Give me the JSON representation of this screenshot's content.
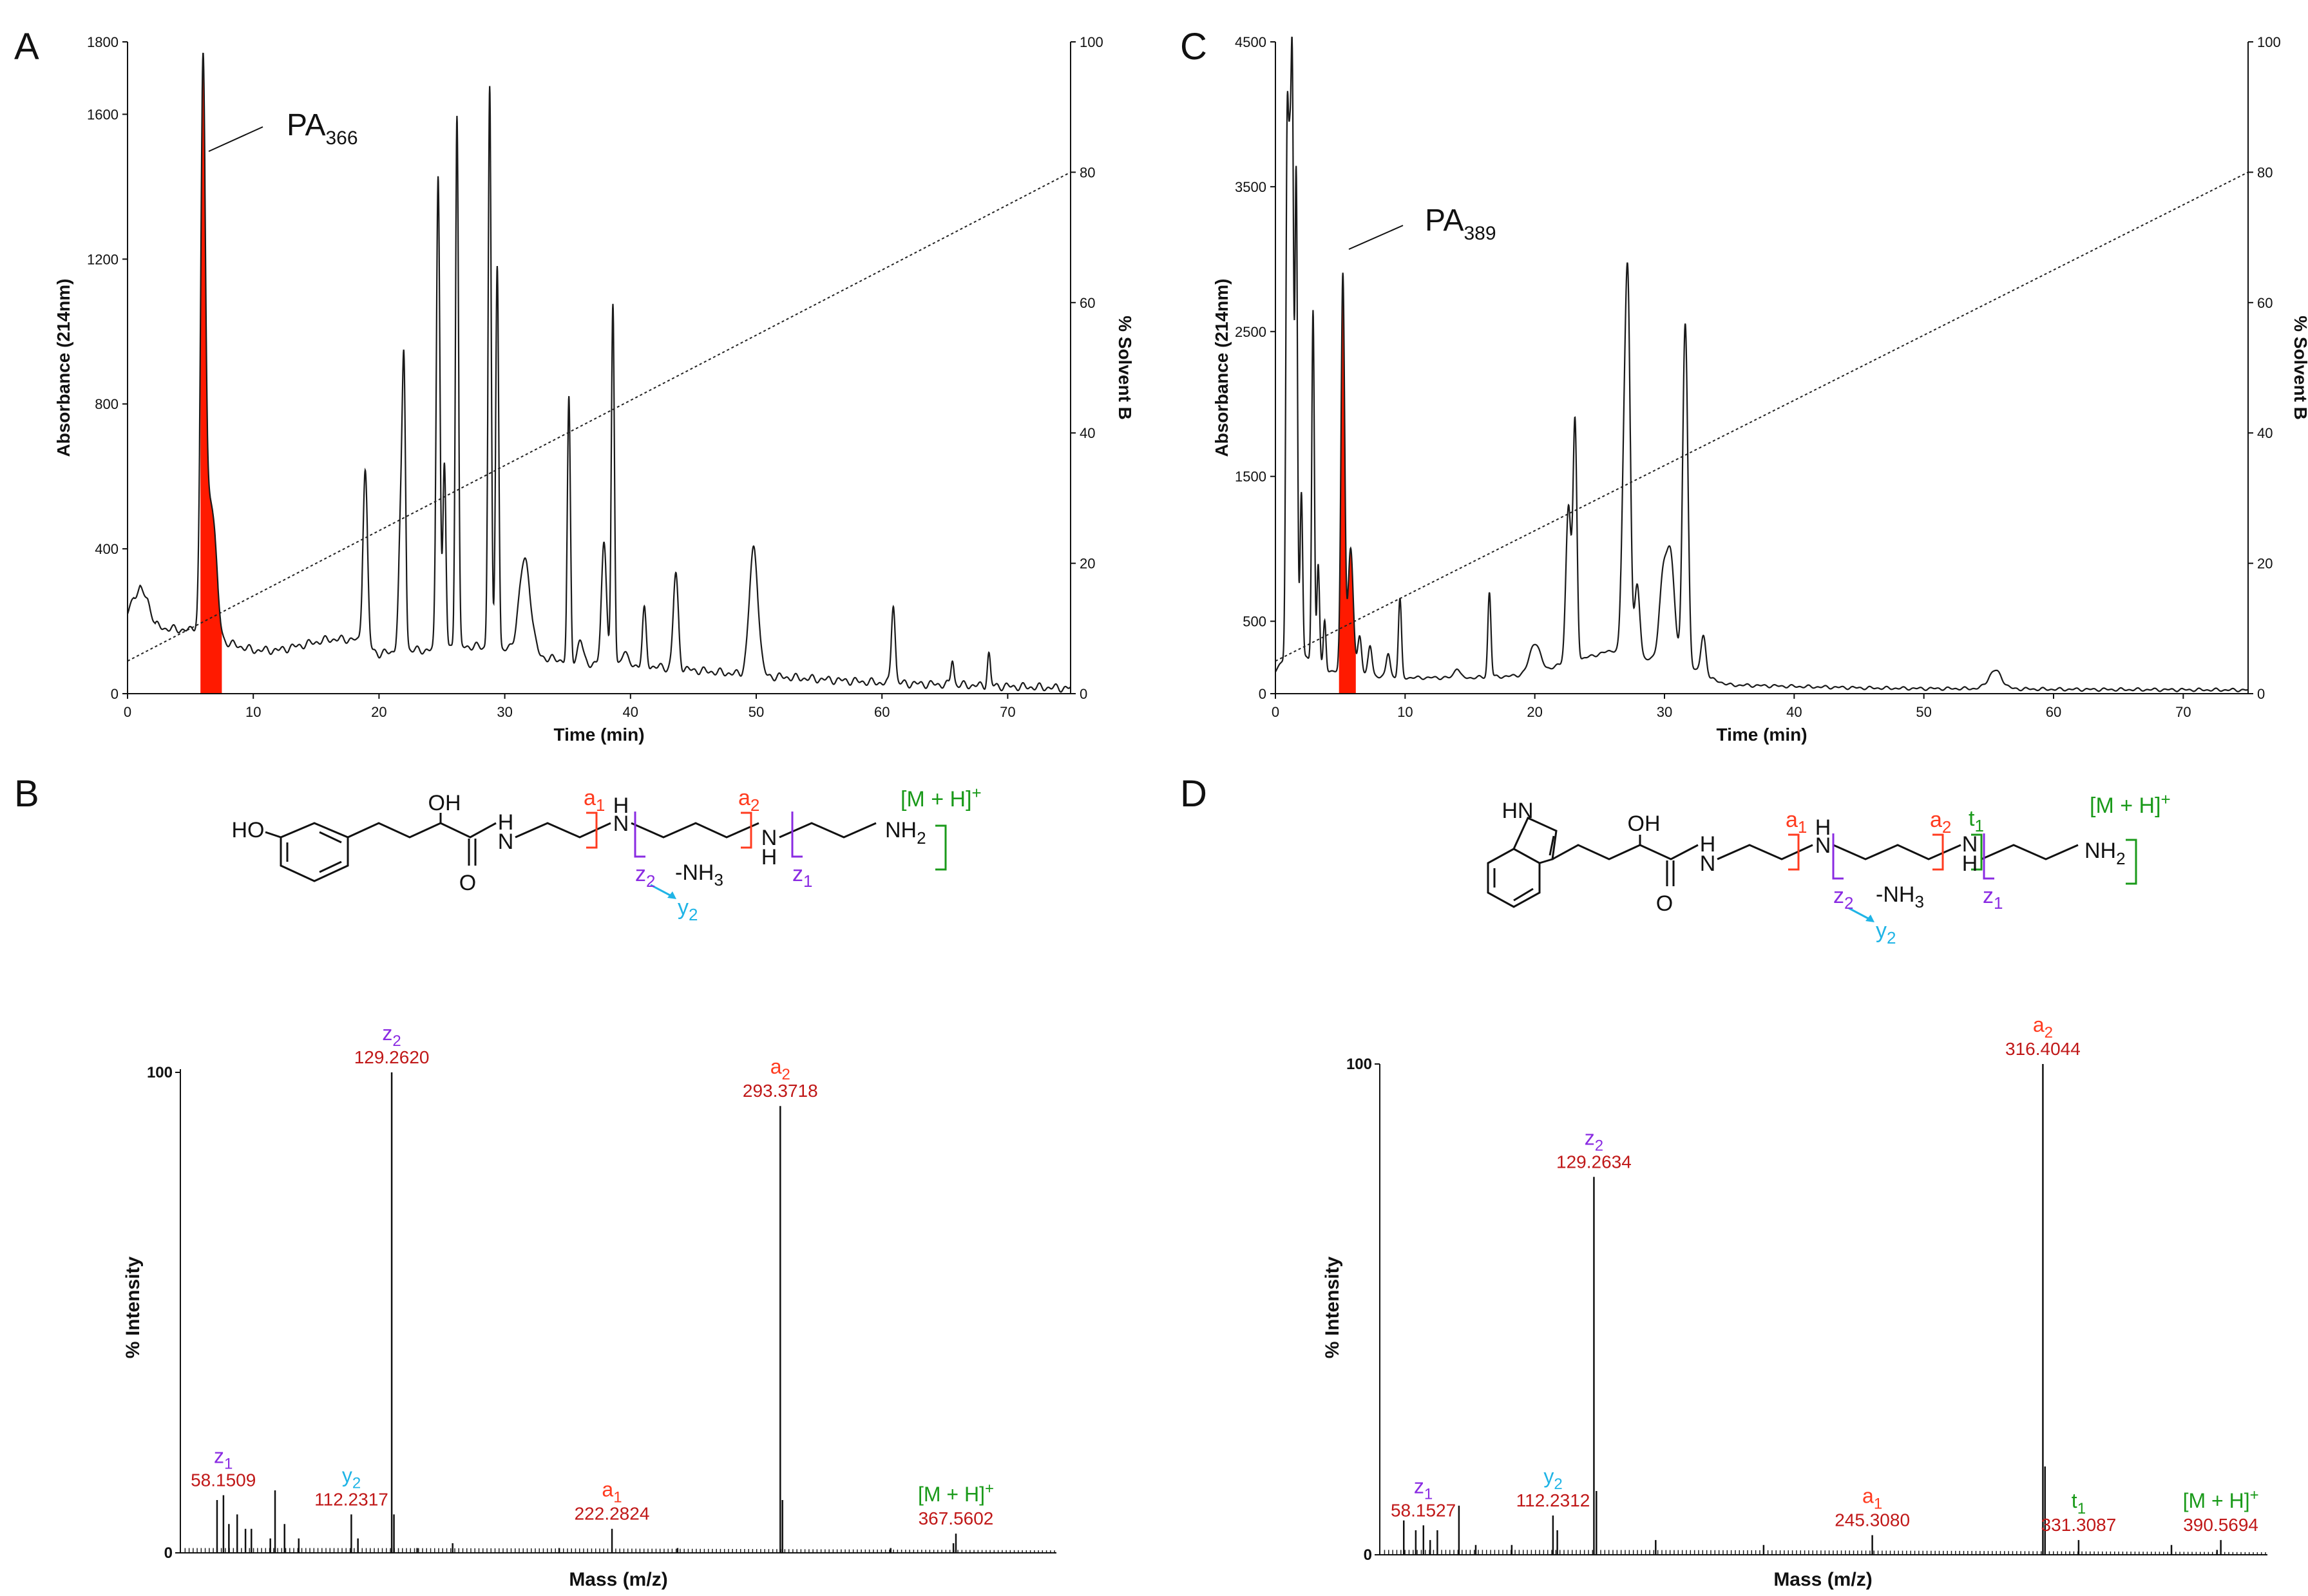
{
  "colors": {
    "axis": "#111111",
    "trace": "#1a1a1a",
    "highlight": "#ff1a00",
    "a_ion": "#ff3b1f",
    "a_label": "#c01818",
    "z_ion": "#8a2be2",
    "y_ion": "#1fb4e6",
    "t_ion": "#1a9a1a",
    "mh_ion": "#1a9a1a"
  },
  "chart_data": [
    {
      "panel": "A",
      "type": "line",
      "xlabel": "Time (min)",
      "ylabel": "Absorbance (214nm)",
      "y2label": "% Solvent B",
      "xlim": [
        0,
        75
      ],
      "ylim": [
        0,
        1800
      ],
      "y2lim": [
        0,
        100
      ],
      "xticks": [
        "0",
        "10",
        "20",
        "30",
        "40",
        "50",
        "60",
        "70"
      ],
      "yticks": [
        "0",
        "400",
        "800",
        "1200",
        "1600",
        "1800"
      ],
      "y2ticks": [
        "0",
        "20",
        "40",
        "60",
        "80",
        "100"
      ],
      "peak_label": {
        "base": "PA",
        "sub": "366"
      },
      "highlight_range": [
        5.8,
        7.5
      ],
      "gradient": {
        "x": [
          0,
          75
        ],
        "y": [
          5,
          80
        ]
      },
      "baseline": [
        [
          0,
          220
        ],
        [
          0.5,
          270
        ],
        [
          1,
          290
        ],
        [
          1.6,
          260
        ],
        [
          2.2,
          190
        ],
        [
          3,
          180
        ],
        [
          5,
          175
        ],
        [
          5.5,
          185
        ],
        [
          6.4,
          200
        ],
        [
          7.2,
          150
        ],
        [
          8,
          140
        ],
        [
          10,
          120
        ],
        [
          12,
          120
        ],
        [
          16,
          150
        ],
        [
          18,
          150
        ],
        [
          20,
          110
        ],
        [
          22,
          120
        ],
        [
          24,
          120
        ],
        [
          26,
          130
        ],
        [
          28,
          130
        ],
        [
          30,
          120
        ],
        [
          31,
          120
        ],
        [
          33,
          100
        ],
        [
          35,
          90
        ],
        [
          38,
          80
        ],
        [
          40,
          80
        ],
        [
          45,
          65
        ],
        [
          50,
          50
        ],
        [
          55,
          40
        ],
        [
          60,
          30
        ],
        [
          65,
          25
        ],
        [
          70,
          20
        ],
        [
          75,
          15
        ]
      ],
      "peaks": [
        [
          6.0,
          1620,
          0.18
        ],
        [
          6.4,
          480,
          0.35
        ],
        [
          6.9,
          360,
          0.3
        ],
        [
          12.2,
          110,
          0.8
        ],
        [
          16.5,
          80,
          0.4
        ],
        [
          18.9,
          620,
          0.18
        ],
        [
          21.8,
          560,
          0.2
        ],
        [
          22.0,
          660,
          0.12
        ],
        [
          23.5,
          80,
          0.2
        ],
        [
          24.7,
          1440,
          0.14
        ],
        [
          25.2,
          630,
          0.12
        ],
        [
          26.2,
          1600,
          0.12
        ],
        [
          27.5,
          110,
          0.2
        ],
        [
          28.8,
          1680,
          0.12
        ],
        [
          29.4,
          1190,
          0.12
        ],
        [
          30.5,
          120,
          0.3
        ],
        [
          31.6,
          370,
          0.45
        ],
        [
          35.1,
          810,
          0.12
        ],
        [
          36.0,
          150,
          0.2
        ],
        [
          37.9,
          420,
          0.2
        ],
        [
          38.6,
          1070,
          0.12
        ],
        [
          39.5,
          120,
          0.2
        ],
        [
          41.1,
          230,
          0.15
        ],
        [
          43.6,
          330,
          0.2
        ],
        [
          49.8,
          400,
          0.35
        ],
        [
          60.9,
          250,
          0.15
        ],
        [
          65.6,
          95,
          0.12
        ],
        [
          68.5,
          110,
          0.12
        ]
      ]
    },
    {
      "panel": "C",
      "type": "line",
      "xlabel": "Time (min)",
      "ylabel": "Absorbance (214nm)",
      "y2label": "% Solvent B",
      "xlim": [
        0,
        75
      ],
      "ylim": [
        0,
        4500
      ],
      "y2lim": [
        0,
        100
      ],
      "xticks": [
        "0",
        "10",
        "20",
        "30",
        "40",
        "50",
        "60",
        "70"
      ],
      "yticks": [
        "0",
        "500",
        "1500",
        "2500",
        "3500",
        "4500"
      ],
      "y2ticks": [
        "0",
        "20",
        "40",
        "60",
        "80",
        "100"
      ],
      "peak_label": {
        "base": "PA",
        "sub": "389"
      },
      "highlight_range": [
        4.9,
        6.2
      ],
      "gradient": {
        "x": [
          0,
          75
        ],
        "y": [
          5,
          80
        ]
      },
      "baseline": [
        [
          0,
          150
        ],
        [
          1,
          300
        ],
        [
          2,
          260
        ],
        [
          3,
          220
        ],
        [
          4,
          160
        ],
        [
          6,
          140
        ],
        [
          8,
          120
        ],
        [
          10,
          110
        ],
        [
          15,
          110
        ],
        [
          18,
          120
        ],
        [
          20,
          140
        ],
        [
          22,
          200
        ],
        [
          24,
          250
        ],
        [
          26,
          300
        ],
        [
          28,
          250
        ],
        [
          30,
          220
        ],
        [
          32,
          180
        ],
        [
          33,
          120
        ],
        [
          35,
          60
        ],
        [
          40,
          50
        ],
        [
          45,
          40
        ],
        [
          50,
          35
        ],
        [
          55,
          35
        ],
        [
          60,
          30
        ],
        [
          75,
          25
        ]
      ],
      "peaks": [
        [
          0.9,
          3650,
          0.1
        ],
        [
          1.1,
          3000,
          0.1
        ],
        [
          1.3,
          4050,
          0.1
        ],
        [
          1.6,
          3600,
          0.1
        ],
        [
          2.0,
          1400,
          0.1
        ],
        [
          2.9,
          2650,
          0.1
        ],
        [
          3.3,
          900,
          0.1
        ],
        [
          3.8,
          500,
          0.1
        ],
        [
          5.2,
          2900,
          0.14
        ],
        [
          5.8,
          1000,
          0.2
        ],
        [
          6.5,
          400,
          0.15
        ],
        [
          7.3,
          330,
          0.15
        ],
        [
          8.7,
          280,
          0.15
        ],
        [
          9.6,
          650,
          0.12
        ],
        [
          14.0,
          180,
          0.2
        ],
        [
          16.5,
          700,
          0.12
        ],
        [
          20.0,
          350,
          0.4
        ],
        [
          22.6,
          1300,
          0.2
        ],
        [
          23.1,
          1850,
          0.15
        ],
        [
          26.9,
          1600,
          0.2
        ],
        [
          27.2,
          2450,
          0.18
        ],
        [
          27.9,
          750,
          0.2
        ],
        [
          29.9,
          800,
          0.3
        ],
        [
          30.5,
          900,
          0.3
        ],
        [
          31.6,
          2550,
          0.2
        ],
        [
          33.0,
          400,
          0.2
        ],
        [
          55.5,
          160,
          0.5
        ]
      ]
    },
    {
      "panel": "B",
      "type": "bar",
      "xlabel": "Mass (m/z)",
      "ylabel": "% Intensity",
      "xlim": [
        40,
        410
      ],
      "ylim": [
        0,
        100
      ],
      "yticks": [
        "0",
        "100"
      ],
      "peaks": [
        [
          55.5,
          11
        ],
        [
          58.2,
          12
        ],
        [
          60.5,
          6
        ],
        [
          64,
          8
        ],
        [
          67.5,
          5
        ],
        [
          70,
          5
        ],
        [
          78,
          3
        ],
        [
          80,
          13
        ],
        [
          84,
          6
        ],
        [
          90,
          3
        ],
        [
          112.2,
          8
        ],
        [
          115,
          3
        ],
        [
          129.262,
          100
        ],
        [
          130.2,
          8
        ],
        [
          140,
          1
        ],
        [
          155,
          2
        ],
        [
          200,
          1
        ],
        [
          222.3,
          5
        ],
        [
          250,
          1
        ],
        [
          293.372,
          93
        ],
        [
          294.3,
          11
        ],
        [
          340,
          1
        ],
        [
          366.5,
          2
        ],
        [
          367.56,
          4
        ]
      ],
      "labels": [
        {
          "ion": "z",
          "sub": "2",
          "mass": "129.2620",
          "color": "z",
          "x": 129.262,
          "y": 100,
          "sup": ""
        },
        {
          "ion": "a",
          "sub": "2",
          "mass": "293.3718",
          "color": "a",
          "x": 293.372,
          "y": 93,
          "sup": ""
        },
        {
          "ion": "z",
          "sub": "1",
          "mass": "58.1509",
          "color": "z",
          "x": 58.151,
          "y": 12,
          "sup": ""
        },
        {
          "ion": "y",
          "sub": "2",
          "mass": "112.2317",
          "color": "y",
          "x": 112.232,
          "y": 8,
          "sup": ""
        },
        {
          "ion": "a",
          "sub": "1",
          "mass": "222.2824",
          "color": "a",
          "x": 222.282,
          "y": 5,
          "sup": ""
        },
        {
          "ion": "[M + H]",
          "sub": "",
          "mass": "367.5602",
          "color": "mh",
          "x": 367.56,
          "y": 4,
          "sup": "+"
        }
      ]
    },
    {
      "panel": "D",
      "type": "bar",
      "xlabel": "Mass (m/z)",
      "ylabel": "% Intensity",
      "xlim": [
        40,
        410
      ],
      "ylim": [
        0,
        100
      ],
      "yticks": [
        "0",
        "100"
      ],
      "peaks": [
        [
          50,
          7
        ],
        [
          55,
          5
        ],
        [
          58.2,
          6
        ],
        [
          61,
          3
        ],
        [
          64,
          5
        ],
        [
          73,
          10
        ],
        [
          80,
          2
        ],
        [
          95,
          2
        ],
        [
          112.2,
          8
        ],
        [
          114,
          5
        ],
        [
          129.263,
          77
        ],
        [
          130.3,
          13
        ],
        [
          155,
          3
        ],
        [
          200,
          2
        ],
        [
          245.3,
          4
        ],
        [
          316.404,
          100
        ],
        [
          317.3,
          18
        ],
        [
          331.3,
          3
        ],
        [
          370,
          2
        ],
        [
          389,
          1
        ],
        [
          390.57,
          3
        ]
      ],
      "labels": [
        {
          "ion": "a",
          "sub": "2",
          "mass": "316.4044",
          "color": "a",
          "x": 316.404,
          "y": 100,
          "sup": ""
        },
        {
          "ion": "z",
          "sub": "2",
          "mass": "129.2634",
          "color": "z",
          "x": 129.263,
          "y": 77,
          "sup": ""
        },
        {
          "ion": "z",
          "sub": "1",
          "mass": "58.1527",
          "color": "z",
          "x": 58.153,
          "y": 6,
          "sup": ""
        },
        {
          "ion": "y",
          "sub": "2",
          "mass": "112.2312",
          "color": "y",
          "x": 112.231,
          "y": 8,
          "sup": ""
        },
        {
          "ion": "a",
          "sub": "1",
          "mass": "245.3080",
          "color": "a",
          "x": 245.308,
          "y": 4,
          "sup": ""
        },
        {
          "ion": "t",
          "sub": "1",
          "mass": "331.3087",
          "color": "t",
          "x": 331.309,
          "y": 3,
          "sup": ""
        },
        {
          "ion": "[M + H]",
          "sub": "",
          "mass": "390.5694",
          "color": "mh",
          "x": 390.569,
          "y": 3,
          "sup": "+"
        }
      ]
    }
  ],
  "panel_letters": {
    "a": "A",
    "b": "B",
    "c": "C",
    "d": "D"
  },
  "structures": {
    "B": {
      "ho": "HO",
      "oh": "OH",
      "h_amide": "H",
      "n_amide": "N",
      "o": "O",
      "n1": "N",
      "h1": "H",
      "n2": "N",
      "h2": "H",
      "nh2": "NH",
      "nh2_sub": "2",
      "a1": "a",
      "a1_sub": "1",
      "a2": "a",
      "a2_sub": "2",
      "z2": "z",
      "z2_sub": "2",
      "z1": "z",
      "z1_sub": "1",
      "y2": "y",
      "y2_sub": "2",
      "loss": "-NH",
      "loss_sub": "3",
      "mh": "[M + H]",
      "mh_sup": "+"
    },
    "D": {
      "hn": "HN",
      "oh": "OH",
      "h_amide": "H",
      "n_amide": "N",
      "o": "O",
      "n1": "N",
      "h1": "H",
      "n2": "N",
      "h2": "H",
      "nh2": "NH",
      "nh2_sub": "2",
      "a1": "a",
      "a1_sub": "1",
      "a2": "a",
      "a2_sub": "2",
      "z2": "z",
      "z2_sub": "2",
      "z1": "z",
      "z1_sub": "1",
      "y2": "y",
      "y2_sub": "2",
      "t1": "t",
      "t1_sub": "1",
      "loss": "-NH",
      "loss_sub": "3",
      "mh": "[M + H]",
      "mh_sup": "+"
    }
  }
}
